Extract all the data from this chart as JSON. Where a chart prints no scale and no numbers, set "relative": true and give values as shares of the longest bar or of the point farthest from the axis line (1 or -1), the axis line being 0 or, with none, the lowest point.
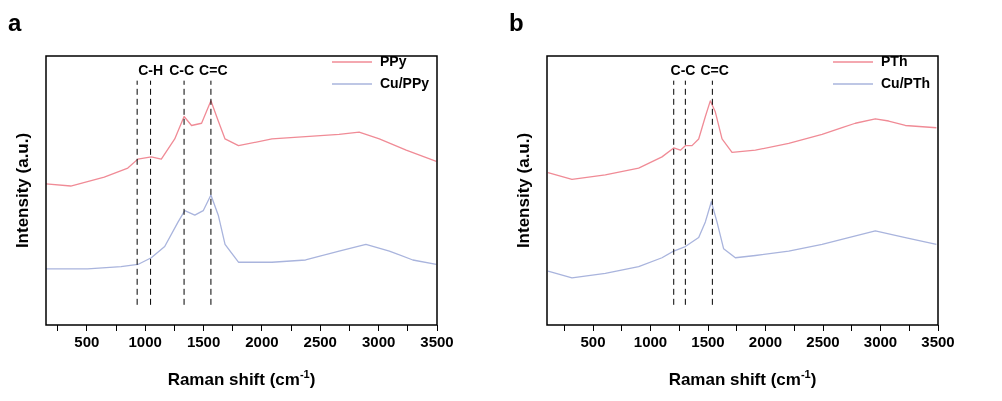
{
  "chart_data": [
    {
      "type": "line",
      "title": "a",
      "xlabel": "Raman shift (cm$^{-1}$)",
      "ylabel": "Intensity (a.u.)",
      "relative": true,
      "marker": "none",
      "line_style": "solid",
      "grid": false,
      "legend": "top right",
      "xlim": [
        150,
        3500
      ],
      "xticks": [
        {
          "value": 250,
          "label": null
        },
        500,
        {
          "value": 750,
          "label": null
        },
        1000,
        {
          "value": 1250,
          "label": null
        },
        1500,
        {
          "value": 1750,
          "label": null
        },
        2000,
        {
          "value": 2250,
          "label": null
        },
        2500,
        {
          "value": 2750,
          "label": null
        },
        3000,
        {
          "value": 3250,
          "label": null
        },
        3500
      ],
      "series": [
        {
          "name": "PPy",
          "color": "#f08b96",
          "x": [
            150,
            362,
            649,
            851,
            937,
            1052,
            1138,
            1253,
            1333,
            1397,
            1483,
            1563,
            1626,
            1684,
            1799,
            2086,
            2374,
            2661,
            2833,
            3006,
            3236,
            3494
          ],
          "values": [
            0.63,
            0.62,
            0.66,
            0.7,
            0.74,
            0.75,
            0.74,
            0.83,
            0.93,
            0.89,
            0.9,
            1.0,
            0.91,
            0.83,
            0.8,
            0.83,
            0.84,
            0.85,
            0.86,
            0.83,
            0.78,
            0.73
          ]
        },
        {
          "name": "Cu/PPy",
          "color": "#a9b4dd",
          "x": [
            150,
            506,
            793,
            937,
            1052,
            1167,
            1282,
            1339,
            1425,
            1497,
            1563,
            1626,
            1684,
            1799,
            2086,
            2374,
            2661,
            2891,
            3092,
            3293,
            3494
          ],
          "values": [
            0.25,
            0.25,
            0.26,
            0.27,
            0.3,
            0.35,
            0.46,
            0.51,
            0.49,
            0.51,
            0.58,
            0.49,
            0.36,
            0.28,
            0.28,
            0.29,
            0.33,
            0.36,
            0.33,
            0.29,
            0.27
          ]
        }
      ],
      "ref_lines": [
        {
          "axis": "x",
          "value": 931
        },
        {
          "axis": "x",
          "value": 1046,
          "label": "C-H"
        },
        {
          "axis": "x",
          "value": 1333,
          "label": "C-C"
        },
        {
          "axis": "x",
          "value": 1563,
          "label": "C=C"
        }
      ]
    },
    {
      "type": "line",
      "title": "b",
      "xlabel": "Raman shift (cm$^{-1}$)",
      "ylabel": "Intensity (a.u.)",
      "relative": true,
      "marker": "none",
      "line_style": "solid",
      "grid": false,
      "legend": "top right",
      "xlim": [
        100,
        3500
      ],
      "xticks": [
        {
          "value": 250,
          "label": null
        },
        500,
        {
          "value": 750,
          "label": null
        },
        1000,
        {
          "value": 1250,
          "label": null
        },
        1500,
        {
          "value": 1750,
          "label": null
        },
        2000,
        {
          "value": 2250,
          "label": null
        },
        2500,
        {
          "value": 2750,
          "label": null
        },
        3000,
        {
          "value": 3250,
          "label": null
        },
        3500
      ],
      "series": [
        {
          "name": "PTh",
          "color": "#f08b96",
          "x": [
            109,
            317,
            607,
            897,
            1100,
            1202,
            1260,
            1303,
            1361,
            1419,
            1477,
            1520,
            1564,
            1622,
            1709,
            1912,
            2202,
            2492,
            2666,
            2781,
            2955,
            3071,
            3216,
            3486
          ],
          "values": [
            0.68,
            0.65,
            0.67,
            0.7,
            0.75,
            0.79,
            0.78,
            0.8,
            0.8,
            0.83,
            0.93,
            1.0,
            0.95,
            0.83,
            0.77,
            0.78,
            0.81,
            0.85,
            0.88,
            0.9,
            0.92,
            0.91,
            0.89,
            0.88
          ]
        },
        {
          "name": "Cu/PTh",
          "color": "#a9b4dd",
          "x": [
            109,
            317,
            607,
            897,
            1100,
            1202,
            1303,
            1419,
            1477,
            1529,
            1578,
            1636,
            1738,
            1912,
            2202,
            2492,
            2723,
            2955,
            3216,
            3486
          ],
          "values": [
            0.24,
            0.21,
            0.23,
            0.26,
            0.3,
            0.33,
            0.35,
            0.39,
            0.46,
            0.55,
            0.46,
            0.34,
            0.3,
            0.31,
            0.33,
            0.36,
            0.39,
            0.42,
            0.39,
            0.36
          ]
        }
      ],
      "ref_lines": [
        {
          "axis": "x",
          "value": 1202
        },
        {
          "axis": "x",
          "value": 1303,
          "label": "C-C"
        },
        {
          "axis": "x",
          "value": 1538,
          "label": "C=C"
        }
      ]
    }
  ]
}
